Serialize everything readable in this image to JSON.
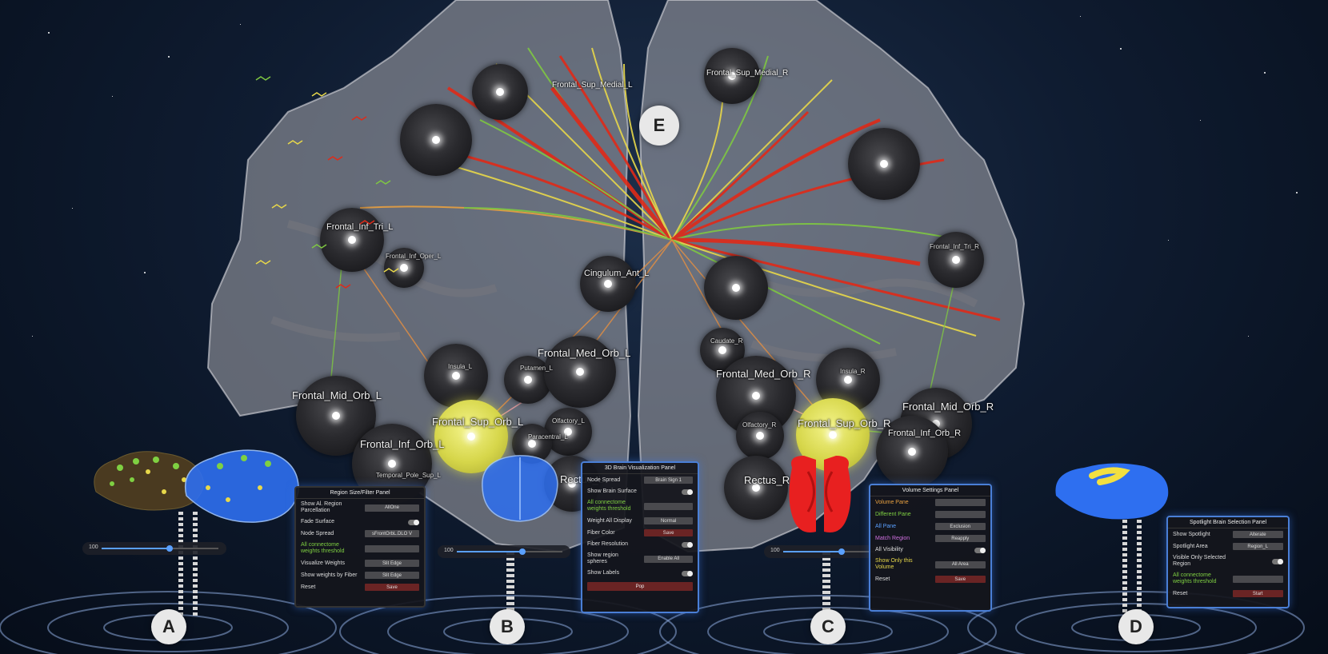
{
  "scene": {
    "badges": [
      "A",
      "B",
      "C",
      "D",
      "E"
    ],
    "labels_large": {
      "frontal_mid_orb_l": "Frontal_Mid_Orb_L",
      "frontal_sup_orb_l": "Frontal_Sup_Orb_L",
      "frontal_med_orb_l": "Frontal_Med_Orb_L",
      "frontal_inf_orb_l": "Frontal_Inf_Orb_L",
      "frontal_med_orb_r": "Frontal_Med_Orb_R",
      "frontal_sup_orb_r": "Frontal_Sup_Orb_R",
      "frontal_mid_orb_r": "Frontal_Mid_Orb_R",
      "frontal_inf_orb_r": "Frontal_Inf_Orb_R",
      "rectus_l": "Rectus_L",
      "rectus_r": "Rectus_R",
      "cingulum_ant_l": "Cingulum_Ant_L",
      "frontal_inf_tri_l": "Frontal_Inf_Tri_L",
      "frontal_sup_medial_r": "Frontal_Sup_Medial_R",
      "frontal_sup_medial_l": "Frontal_Sup_Medial_L"
    },
    "labels_small": {
      "insula_l": "Insula_L",
      "putamen_l": "Putamen_L",
      "olfactory_l": "Olfactory_L",
      "olfactory_r": "Olfactory_R",
      "caudate_r": "Caudate_R",
      "insula_r": "Insula_R",
      "temporal_pole_sup_l": "Temporal_Pole_Sup_L",
      "frontal_inf_oper_l": "Frontal_Inf_Oper_L",
      "frontal_inf_tri_r": "Frontal_Inf_Tri_R",
      "paracentral_l": "Paracentral_L"
    },
    "colors": {
      "panel_border": "#4a7fd6",
      "fiber_red": "#e02a18",
      "fiber_yellow": "#e8d84a",
      "fiber_green": "#7fc842",
      "node_yellow": "#e6e65a",
      "brain_blue": "#2e6ff0",
      "brain_red": "#e82020"
    }
  },
  "panel_a": {
    "title": "Region Size/Filter Panel",
    "rows": [
      {
        "label": "Show Al. Region Parcellation",
        "value": "AllOne"
      },
      {
        "label": "Fade Surface",
        "value": ""
      },
      {
        "label": "Node Spread",
        "value": "sFrontOrbL.DLO V"
      },
      {
        "label": "All connectome weights threshold",
        "value": ""
      },
      {
        "label": "Visualize Weights",
        "value": "Slit Edge"
      },
      {
        "label": "Show weights by Fiber",
        "value": "Slit Edge"
      }
    ],
    "button": "Save",
    "last_label": "Reset"
  },
  "panel_b": {
    "title": "3D Brain Visualization Panel",
    "rows": [
      {
        "label": "Node Spread",
        "value": "Brain Sign 1"
      },
      {
        "label": "Show Brain Surface",
        "value": ""
      },
      {
        "label": "All connectome weights threshold",
        "value": ""
      },
      {
        "label": "Weight All Display",
        "value": "Normal"
      },
      {
        "label": "Fiber Color",
        "value": ""
      }
    ],
    "button": "Save",
    "rows2": [
      {
        "label": "Fiber Resolution",
        "value": ""
      },
      {
        "label": "Show region spheres",
        "value": "Enable All"
      },
      {
        "label": "Show Labels",
        "value": ""
      }
    ],
    "button2": "Pop"
  },
  "panel_c": {
    "title": "Volume Settings Panel",
    "rows": [
      {
        "label": "Volume Pane",
        "value": ""
      },
      {
        "label": "Different Pane",
        "value": ""
      },
      {
        "label": "All Pane",
        "value": "Exclusion"
      },
      {
        "label": "Match Region",
        "value": ""
      }
    ],
    "button": "Reapply",
    "rows2": [
      {
        "label": "All Visibility",
        "value": ""
      },
      {
        "label": "Show Only this Volume",
        "value": "All Area"
      }
    ],
    "button2": "Save",
    "last_label": "Reset"
  },
  "panel_d": {
    "title": "Spotlight Brain Selection Panel",
    "rows": [
      {
        "label": "Show Spotlight",
        "value": "Alterate"
      },
      {
        "label": "Spotlight Area",
        "value": "Region_L"
      },
      {
        "label": "Visible Only Selected Region",
        "value": ""
      },
      {
        "label": "All connectome weights threshold",
        "value": ""
      },
      {
        "label": "Reset",
        "value": ""
      }
    ],
    "button": "Start"
  },
  "sliders": [
    {
      "text": "100",
      "level": 0.58
    },
    {
      "text": "100",
      "level": 0.62
    },
    {
      "text": "100",
      "level": 0.55
    }
  ]
}
